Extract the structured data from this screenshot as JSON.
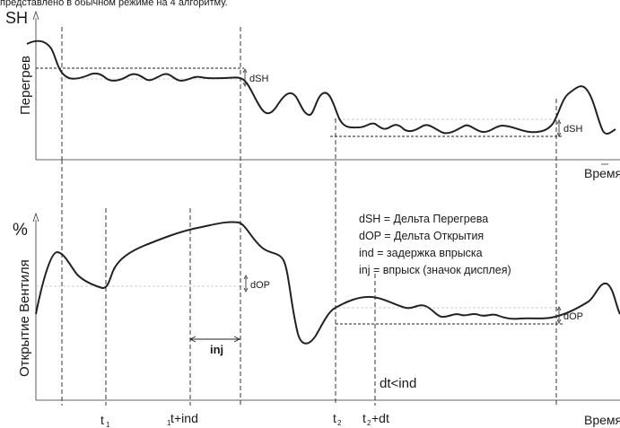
{
  "header": {
    "caption": "представлено в обычном режиме на 4 алгоритму.",
    "upper_axis_label": "SH"
  },
  "upper_graph": {
    "y_label": "Перегрев",
    "x_label": "Время",
    "dsh_label_1": "dSH",
    "dsh_label_2": "dSH"
  },
  "lower_graph": {
    "y_label": "Открытие Вентиля",
    "y_unit": "%",
    "x_label": "Время",
    "dop_label_1": "dOP",
    "dop_label_2": "dOP",
    "inj_label": "inj",
    "dt_condition": "dt<ind"
  },
  "legend": [
    "dSH = Дельта Перегрева",
    "dOP = Дельта Открытия",
    "ind = задержка впрыска",
    "inj = впрыск (значок дисплея)"
  ],
  "time_markers": {
    "t1_main": "t",
    "t1_sub": "1",
    "t1ind_sub": "1",
    "t1ind_main": "t",
    "t1ind_suffix": "+ind",
    "t2_main": "t",
    "t2_sub": "2",
    "t2dt_main": "t",
    "t2dt_sub": "2",
    "t2dt_suffix": "+dt"
  },
  "colors": {
    "curve": "#222222",
    "dashed": "#222222",
    "guide": "#bdbdbd",
    "axis": "#333333"
  }
}
